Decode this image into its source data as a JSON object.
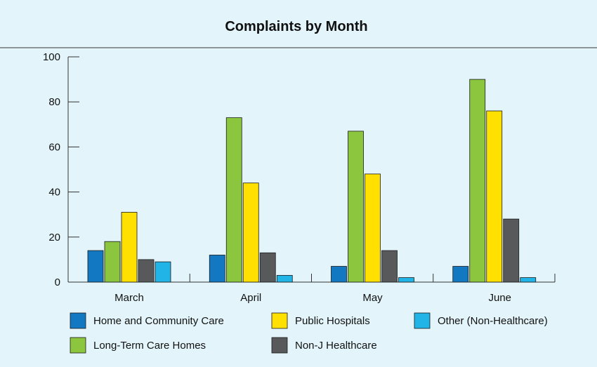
{
  "chart_data": {
    "type": "bar",
    "title": "Complaints by Month",
    "xlabel": "",
    "ylabel": "",
    "ylim": [
      0,
      100
    ],
    "yticks": [
      0,
      20,
      40,
      60,
      80,
      100
    ],
    "categories": [
      "March",
      "April",
      "May",
      "June"
    ],
    "grid": false,
    "legend_position": "bottom",
    "series": [
      {
        "name": "Home and Community Care",
        "color": "#1378c2",
        "values": [
          14,
          12,
          7,
          7
        ]
      },
      {
        "name": "Long-Term Care Homes",
        "color": "#8cc63f",
        "values": [
          18,
          73,
          67,
          90
        ]
      },
      {
        "name": "Public Hospitals",
        "color": "#ffe000",
        "values": [
          31,
          44,
          48,
          76
        ]
      },
      {
        "name": "Non-J Healthcare",
        "color": "#58595b",
        "values": [
          10,
          13,
          14,
          28
        ]
      },
      {
        "name": "Other (Non-Healthcare)",
        "color": "#21b4e6",
        "values": [
          9,
          3,
          2,
          2
        ]
      }
    ]
  }
}
